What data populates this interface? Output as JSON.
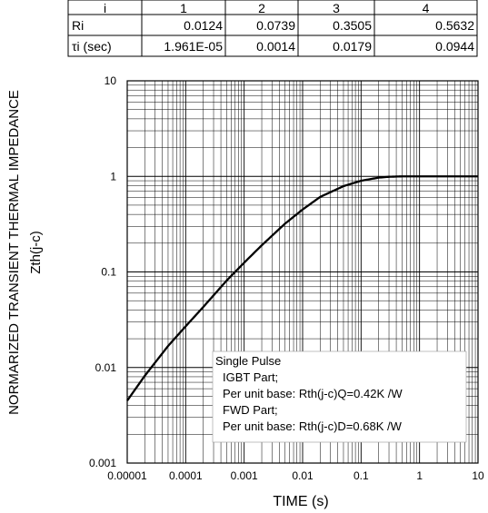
{
  "table": {
    "header": [
      "i",
      "1",
      "2",
      "3",
      "4"
    ],
    "rows": [
      [
        "Ri",
        "0.0124",
        "0.0739",
        "0.3505",
        "0.5632"
      ],
      [
        "τi (sec)",
        "1.961E-05",
        "0.0014",
        "0.0179",
        "0.0944"
      ]
    ]
  },
  "legend_lines": [
    "Single Pulse",
    "IGBT Part;",
    "Per unit base: Rth(j-c)Q=0.42K /W",
    "FWD Part;",
    "Per unit base: Rth(j-c)D=0.68K /W"
  ],
  "chart_data": {
    "type": "line",
    "xlabel": "TIME (s)",
    "ylabel": "NORMARIZED TRANSIENT THERMAL IMPEDANCE",
    "ylabel2": "Zth(j-c)",
    "x_scale": "log",
    "y_scale": "log",
    "xlim": [
      1e-05,
      10
    ],
    "ylim": [
      0.001,
      10
    ],
    "x_ticks": [
      {
        "v": 1e-05,
        "label": "0.00001"
      },
      {
        "v": 0.0001,
        "label": "0.0001"
      },
      {
        "v": 0.001,
        "label": "0.001"
      },
      {
        "v": 0.01,
        "label": "0.01"
      },
      {
        "v": 0.1,
        "label": "0.1"
      },
      {
        "v": 1,
        "label": "1"
      },
      {
        "v": 10,
        "label": "10"
      }
    ],
    "y_ticks": [
      {
        "v": 0.001,
        "label": "0.001"
      },
      {
        "v": 0.01,
        "label": "0.01"
      },
      {
        "v": 0.1,
        "label": "0.1"
      },
      {
        "v": 1,
        "label": "1"
      },
      {
        "v": 10,
        "label": "10"
      }
    ],
    "grid": true,
    "series": [
      {
        "x": [
          1e-05,
          2e-05,
          5e-05,
          0.0001,
          0.0002,
          0.0005,
          0.001,
          0.002,
          0.005,
          0.01,
          0.02,
          0.05,
          0.1,
          0.2,
          0.3,
          0.5,
          1,
          2,
          5,
          10
        ],
        "y": [
          0.0045,
          0.0082,
          0.0168,
          0.027,
          0.043,
          0.081,
          0.125,
          0.19,
          0.32,
          0.45,
          0.61,
          0.79,
          0.9,
          0.97,
          0.99,
          1.0,
          1.0,
          1.0,
          1.0,
          1.0
        ]
      }
    ]
  }
}
